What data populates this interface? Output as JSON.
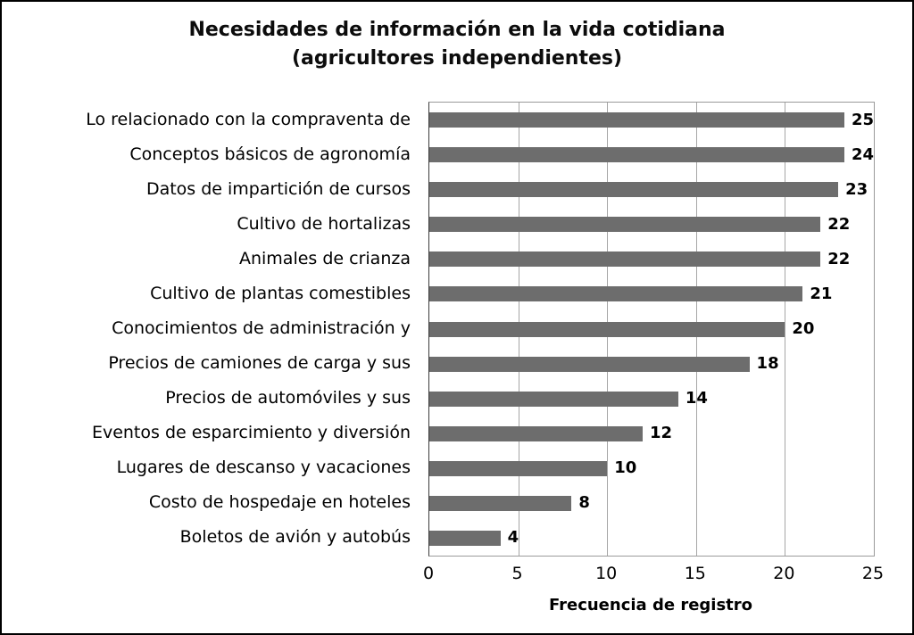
{
  "chart_data": {
    "type": "bar",
    "orientation": "horizontal",
    "title": "Necesidades de información en la vida cotidiana",
    "subtitle": "(agricultores independientes)",
    "xlabel": "Frecuencia de registro",
    "xlim": [
      0,
      25
    ],
    "xticks": [
      0,
      5,
      10,
      15,
      20,
      25
    ],
    "grid": true,
    "bar_color": "#6d6d6d",
    "categories": [
      "Lo relacionado con la compraventa de",
      "Conceptos básicos de agronomía",
      "Datos de impartición de cursos",
      "Cultivo de hortalizas",
      "Animales de crianza",
      "Cultivo de plantas comestibles",
      "Conocimientos de administración y",
      "Precios de camiones de carga y sus",
      "Precios de automóviles y sus",
      "Eventos de esparcimiento y diversión",
      "Lugares de descanso y vacaciones",
      "Costo de hospedaje en hoteles",
      "Boletos de avión y autobús"
    ],
    "values": [
      25,
      24,
      23,
      22,
      22,
      21,
      20,
      18,
      14,
      12,
      10,
      8,
      4
    ]
  }
}
